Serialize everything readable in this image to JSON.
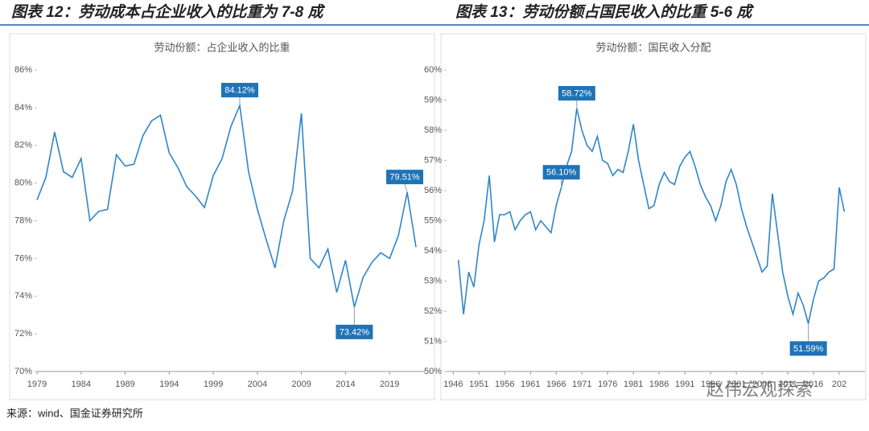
{
  "chart_data": [
    {
      "type": "line",
      "title": "图表 12：劳动成本占企业收入的比重为 7-8 成",
      "subtitle": "劳动份额：占企业收入的比重",
      "color": "#2f86c9",
      "x": [
        1979,
        1980,
        1981,
        1982,
        1983,
        1984,
        1985,
        1986,
        1987,
        1988,
        1989,
        1990,
        1991,
        1992,
        1993,
        1994,
        1995,
        1996,
        1997,
        1998,
        1999,
        2000,
        2001,
        2002,
        2003,
        2004,
        2005,
        2006,
        2007,
        2008,
        2009,
        2010,
        2011,
        2012,
        2013,
        2014,
        2015,
        2016,
        2017,
        2018,
        2019,
        2020,
        2021,
        2022
      ],
      "values": [
        79.1,
        80.3,
        82.7,
        80.6,
        80.3,
        81.3,
        78.0,
        78.5,
        78.6,
        81.5,
        80.9,
        81.0,
        82.5,
        83.3,
        83.6,
        81.6,
        80.8,
        79.8,
        79.3,
        78.7,
        80.4,
        81.3,
        83.0,
        84.12,
        80.6,
        78.6,
        77.0,
        75.5,
        78.0,
        79.6,
        83.7,
        76.0,
        75.5,
        76.5,
        74.2,
        75.9,
        73.42,
        75.0,
        75.8,
        76.3,
        76.0,
        77.2,
        79.51,
        76.6
      ],
      "annotations": [
        {
          "value": 84.12,
          "label": "84.12%"
        },
        {
          "value": 73.42,
          "label": "73.42%"
        },
        {
          "value": 79.51,
          "label": "79.51%"
        }
      ],
      "xlim": [
        1979,
        2023
      ],
      "xticks": [
        1979,
        1984,
        1989,
        1994,
        1999,
        2004,
        2009,
        2014,
        2019
      ],
      "ylim": [
        70,
        86
      ],
      "yticks": [
        {
          "value": 70,
          "label": "70%"
        },
        {
          "value": 72,
          "label": "72%"
        },
        {
          "value": 74,
          "label": "74%"
        },
        {
          "value": 76,
          "label": "76%"
        },
        {
          "value": 78,
          "label": "78%"
        },
        {
          "value": 80,
          "label": "80%"
        },
        {
          "value": 82,
          "label": "82%"
        },
        {
          "value": 84,
          "label": "84%"
        },
        {
          "value": 86,
          "label": "86%"
        }
      ]
    },
    {
      "type": "line",
      "title": "图表 13：劳动份额占国民收入的比重 5-6 成",
      "subtitle": "劳动份额：国民收入分配",
      "color": "#2f86c9",
      "x": [
        1947,
        1948,
        1949,
        1950,
        1951,
        1952,
        1953,
        1954,
        1955,
        1956,
        1957,
        1958,
        1959,
        1960,
        1961,
        1962,
        1963,
        1964,
        1965,
        1966,
        1967,
        1968,
        1969,
        1970,
        1971,
        1972,
        1973,
        1974,
        1975,
        1976,
        1977,
        1978,
        1979,
        1980,
        1981,
        1982,
        1983,
        1984,
        1985,
        1986,
        1987,
        1988,
        1989,
        1990,
        1991,
        1992,
        1993,
        1994,
        1995,
        1996,
        1997,
        1998,
        1999,
        2000,
        2001,
        2002,
        2003,
        2004,
        2005,
        2006,
        2007,
        2008,
        2009,
        2010,
        2011,
        2012,
        2013,
        2014,
        2015,
        2016,
        2017,
        2018,
        2019,
        2020,
        2021,
        2022
      ],
      "values": [
        53.7,
        51.9,
        53.3,
        52.8,
        54.2,
        55.0,
        56.5,
        54.3,
        55.2,
        55.2,
        55.3,
        54.7,
        55.0,
        55.2,
        55.3,
        54.7,
        55.0,
        54.8,
        54.6,
        55.5,
        56.1,
        56.8,
        57.3,
        58.72,
        58.0,
        57.5,
        57.3,
        57.8,
        57.0,
        56.9,
        56.5,
        56.7,
        56.6,
        57.3,
        58.2,
        57.0,
        56.2,
        55.4,
        55.5,
        56.2,
        56.6,
        56.3,
        56.2,
        56.8,
        57.1,
        57.3,
        56.8,
        56.2,
        55.8,
        55.5,
        55.0,
        55.5,
        56.3,
        56.7,
        56.2,
        55.4,
        54.8,
        54.3,
        53.8,
        53.3,
        53.5,
        55.9,
        54.6,
        53.3,
        52.5,
        51.9,
        52.6,
        52.2,
        51.59,
        52.4,
        53.0,
        53.1,
        53.3,
        53.4,
        56.1,
        55.3
      ],
      "annotations": [
        {
          "value": 58.72,
          "label": "58.72%"
        },
        {
          "value": 51.59,
          "label": "51.59%"
        },
        {
          "value": 56.1,
          "label": "56.10%"
        }
      ],
      "xlim": [
        1944.7,
        2026
      ],
      "xticks": [
        1946,
        1951,
        1956,
        1961,
        1966,
        1971,
        1976,
        1981,
        1986,
        1991,
        1996,
        2001,
        2006,
        2011,
        2016,
        {
          "value": 2021,
          "label": "202"
        }
      ],
      "ylim": [
        50,
        60
      ],
      "yticks": [
        {
          "value": 50,
          "label": "50%"
        },
        {
          "value": 51,
          "label": "51%"
        },
        {
          "value": 52,
          "label": "52%"
        },
        {
          "value": 53,
          "label": "53%"
        },
        {
          "value": 54,
          "label": "54%"
        },
        {
          "value": 55,
          "label": "55%"
        },
        {
          "value": 56,
          "label": "56%"
        },
        {
          "value": 57,
          "label": "57%"
        },
        {
          "value": 58,
          "label": "58%"
        },
        {
          "value": 59,
          "label": "59%"
        },
        {
          "value": 60,
          "label": "60%"
        }
      ]
    }
  ],
  "source": "来源：wind、国金证券研究所",
  "watermark": "赵伟宏观探索"
}
